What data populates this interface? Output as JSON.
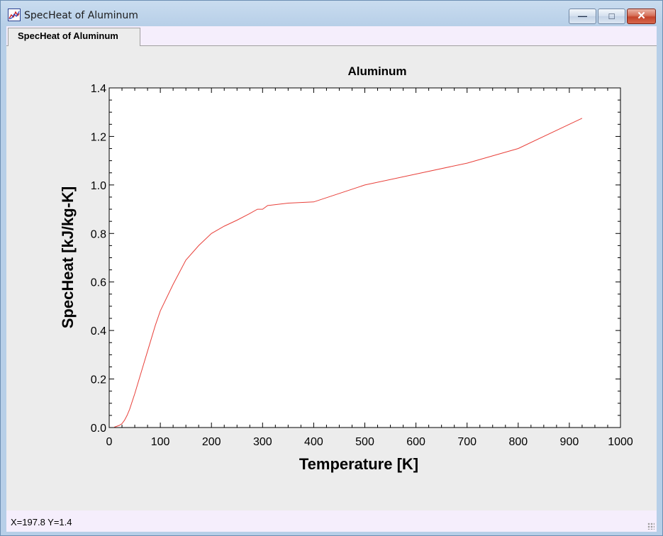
{
  "window": {
    "title": "SpecHeat of Aluminum",
    "minimize_glyph": "—",
    "maximize_glyph": "□",
    "close_glyph": "✕",
    "icon": "chart-app-icon"
  },
  "tabs": [
    {
      "label": "SpecHeat of Aluminum"
    }
  ],
  "status": {
    "text": "X=197.8   Y=1.4"
  },
  "colors": {
    "series": "#e8403a",
    "plot_bg": "#ffffff",
    "panel_bg": "#ececec"
  },
  "chart_data": {
    "type": "line",
    "title": "Aluminum",
    "xlabel": "Temperature [K]",
    "ylabel": "SpecHeat [kJ/kg-K]",
    "xlim": [
      0,
      1000
    ],
    "ylim": [
      0,
      1.4
    ],
    "xticks": [
      0,
      100,
      200,
      300,
      400,
      500,
      600,
      700,
      800,
      900,
      1000
    ],
    "yticks": [
      0.0,
      0.2,
      0.4,
      0.6,
      0.8,
      1.0,
      1.2,
      1.4
    ],
    "ytick_labels": [
      "0.0",
      "0.2",
      "0.4",
      "0.6",
      "0.8",
      "1.0",
      "1.2",
      "1.4"
    ],
    "grid": false,
    "series": [
      {
        "x": [
          10,
          20,
          25,
          30,
          35,
          40,
          50,
          60,
          70,
          80,
          90,
          100,
          125,
          150,
          175,
          200,
          225,
          250,
          273,
          290,
          300,
          310,
          350,
          400,
          500,
          600,
          700,
          800,
          900,
          925
        ],
        "y": [
          0.0015,
          0.009,
          0.016,
          0.03,
          0.05,
          0.075,
          0.14,
          0.21,
          0.28,
          0.35,
          0.42,
          0.481,
          0.59,
          0.69,
          0.75,
          0.8,
          0.83,
          0.855,
          0.88,
          0.9,
          0.9,
          0.915,
          0.925,
          0.93,
          1.0,
          1.045,
          1.09,
          1.15,
          1.25,
          1.275
        ]
      }
    ]
  }
}
